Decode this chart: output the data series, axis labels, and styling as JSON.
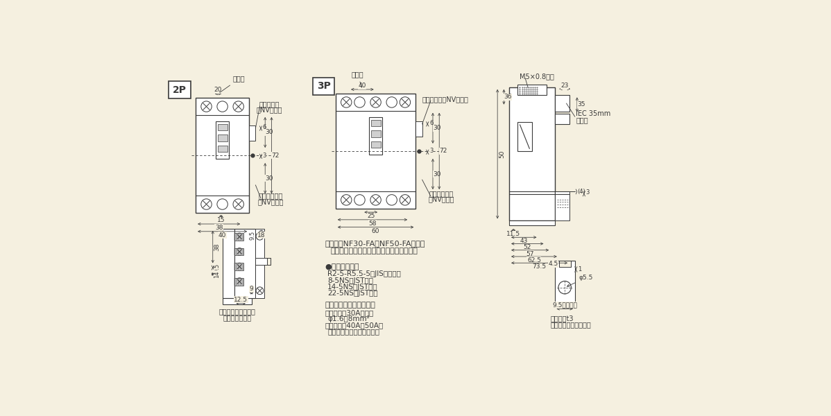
{
  "bg_color": "#f5f0e0",
  "lc": "#3a3a3a",
  "fig_w": 11.98,
  "fig_h": 6.0,
  "dpi": 100,
  "texts": {
    "label_2p": "2P",
    "label_3p": "3P",
    "torifuki": "取付穴",
    "hyoji": "表示ボタン",
    "nv_only": "（NVのみ）",
    "test_btn": "テストボタン",
    "nv_only2": "（NVのみ）",
    "rect_term": "矩形リード線端子台",
    "option": "（オプション）",
    "hyoji3p": "表示ボタン（NVのみ）",
    "note1": "（注意）NF30-FA、NF50-FA形には",
    "note2": "　　　表示ボタン・テストボタンはありません。",
    "term_hdr": "●適合圧着端子",
    "term1": "　R2-5-R5.5-5（JIS規格品）",
    "term2": "　8-5NS（JST社）",
    "term3": "　14-5NS（JST社）",
    "term4": "　22-5NS（JST社）",
    "wire_hdr": "電線じか接続適合サイズ",
    "wire1": "・定格電流30A以下は",
    "wire2": "　φ1.6～8mm²",
    "wire3": "・定格電流40A、50Aは",
    "wire4": "　電線じか接続できません。",
    "m5_screw": "M5×0.8ねじ",
    "iec_rail1": "IEC 35mm",
    "iec_rail2": "レール",
    "busbar1": "導帯最大t3",
    "busbar2": "本体じか付導帯加工図"
  }
}
